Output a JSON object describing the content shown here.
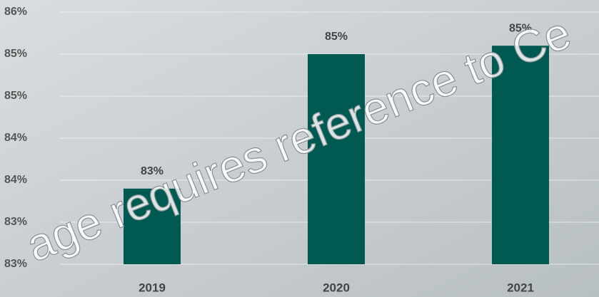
{
  "chart_data": {
    "type": "bar",
    "categories": [
      "2019",
      "2020",
      "2021"
    ],
    "values": [
      83.4,
      85.0,
      85.1
    ],
    "value_labels": [
      "83%",
      "85%",
      "85%"
    ],
    "color": "#005a52",
    "ylim": [
      82.5,
      85.5
    ],
    "yticks": [
      {
        "value": 82.5,
        "label": "83%"
      },
      {
        "value": 83.0,
        "label": "83%"
      },
      {
        "value": 83.5,
        "label": "84%"
      },
      {
        "value": 84.0,
        "label": "84%"
      },
      {
        "value": 84.5,
        "label": "85%"
      },
      {
        "value": 85.0,
        "label": "85%"
      },
      {
        "value": 85.5,
        "label": "86%"
      }
    ],
    "grid": true,
    "watermark": "age requires reference to Ce"
  }
}
